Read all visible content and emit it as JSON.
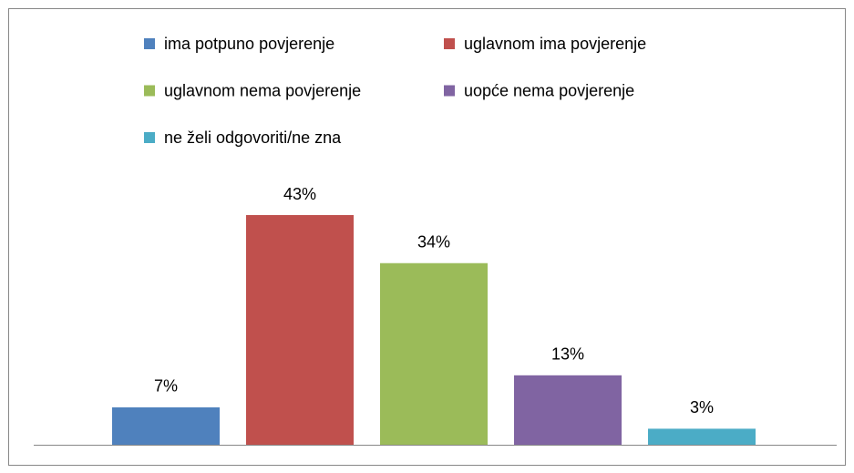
{
  "chart_data": {
    "type": "bar",
    "categories": [
      null
    ],
    "series": [
      {
        "name": "ima potpuno povjerenje",
        "color": "#4f81bd",
        "values": [
          7
        ],
        "value_labels": [
          "7%"
        ]
      },
      {
        "name": "uglavnom ima povjerenje",
        "color": "#c0504d",
        "values": [
          43
        ],
        "value_labels": [
          "43%"
        ]
      },
      {
        "name": "uglavnom nema povjerenje",
        "color": "#9bbb59",
        "values": [
          34
        ],
        "value_labels": [
          "34%"
        ]
      },
      {
        "name": "uopće nema povjerenje",
        "color": "#8064a2",
        "values": [
          13
        ],
        "value_labels": [
          "13%"
        ]
      },
      {
        "name": "ne želi odgovoriti/ne zna",
        "color": "#4bacc6",
        "values": [
          3
        ],
        "value_labels": [
          "3%"
        ]
      }
    ],
    "legend": "top"
  }
}
